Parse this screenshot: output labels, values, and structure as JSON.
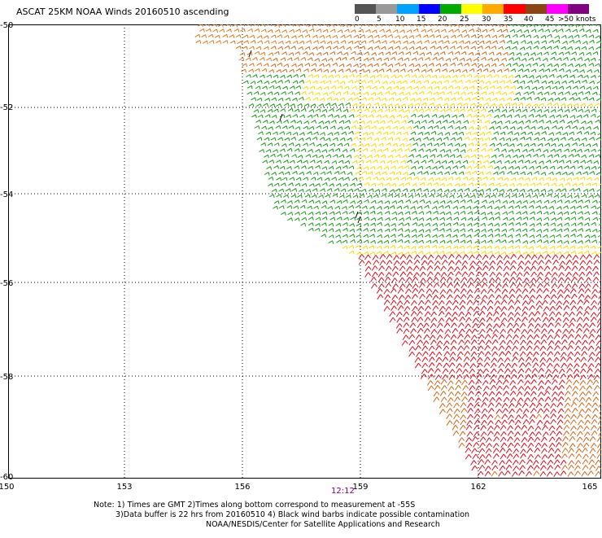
{
  "title": "ASCAT 25KM NOAA Winds 20160510 ascending",
  "colorbar": {
    "colors": [
      "#555555",
      "#999999",
      "#00a0ff",
      "#0000ff",
      "#00aa00",
      "#ffff00",
      "#ffaa00",
      "#ff0000",
      "#8b4513",
      "#ff00ff",
      "#800080"
    ],
    "labels": [
      "0",
      "5",
      "10",
      "15",
      "20",
      "25",
      "30",
      "35",
      "40",
      "45",
      ">50 knots"
    ]
  },
  "map": {
    "lat_labels": [
      "-50",
      "-52",
      "-54",
      "-56",
      "-58",
      "-60"
    ],
    "lon_labels": [
      "150",
      "153",
      "156",
      "159",
      "162",
      "165"
    ],
    "time_label": "12:12",
    "swath_colors": {
      "orange": "#e07820",
      "yellow": "#ffd700",
      "green": "#1a9a1a",
      "red": "#dd1020",
      "darkorange": "#d2691e",
      "black": "#000000"
    }
  },
  "notes": [
    "Note: 1) Times are GMT 2)Times along bottom correspond to measurement at -55S",
    "3)Data buffer is 22 hrs from 20160510 4) Black wind barbs indicate possible contamination",
    "NOAA/NESDIS/Center for Satellite Applications and Research"
  ]
}
